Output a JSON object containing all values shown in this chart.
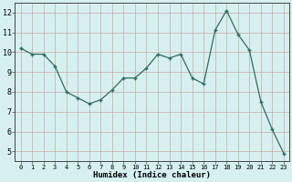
{
  "x": [
    0,
    1,
    2,
    3,
    4,
    5,
    6,
    7,
    8,
    9,
    10,
    11,
    12,
    13,
    14,
    15,
    16,
    17,
    18,
    19,
    20,
    21,
    22,
    23
  ],
  "y": [
    10.2,
    9.9,
    9.9,
    9.3,
    8.0,
    7.7,
    7.4,
    7.6,
    8.1,
    8.7,
    8.7,
    9.2,
    9.9,
    9.7,
    9.9,
    8.7,
    8.4,
    11.1,
    12.1,
    10.9,
    10.1,
    7.5,
    6.1,
    4.9
  ],
  "xlabel": "Humidex (Indice chaleur)",
  "ylim": [
    4.5,
    12.5
  ],
  "xlim": [
    -0.5,
    23.5
  ],
  "yticks": [
    5,
    6,
    7,
    8,
    9,
    10,
    11,
    12
  ],
  "xticks": [
    0,
    1,
    2,
    3,
    4,
    5,
    6,
    7,
    8,
    9,
    10,
    11,
    12,
    13,
    14,
    15,
    16,
    17,
    18,
    19,
    20,
    21,
    22,
    23
  ],
  "line_color": "#2d6e5e",
  "marker_color": "#2d6e5e",
  "bg_color": "#d6f0f0",
  "vgrid_color": "#c8a8a8",
  "hgrid_color": "#c8a8a8"
}
